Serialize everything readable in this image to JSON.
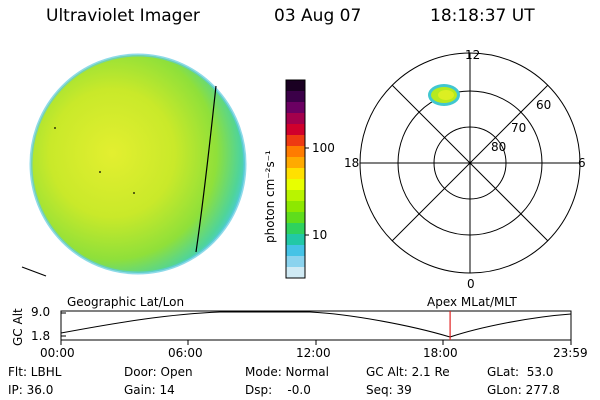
{
  "header": {
    "instrument": "Ultraviolet Imager",
    "date": "03 Aug 07",
    "time": "18:18:37 UT"
  },
  "colorbar": {
    "unit_label": "photon cm⁻²s⁻¹",
    "ticks": [
      "100",
      "10"
    ],
    "colors": [
      "#1a0022",
      "#3b0048",
      "#6b0062",
      "#a3004c",
      "#d0002c",
      "#ee3a12",
      "#ff7c00",
      "#ffaa00",
      "#ffe000",
      "#e8ff00",
      "#b9f400",
      "#8de800",
      "#5fdd1c",
      "#2fd25e",
      "#22c8a6",
      "#45c3e6",
      "#8bd3ee",
      "#d0eaf4"
    ]
  },
  "polar": {
    "mlt_labels": {
      "top": "12",
      "left": "18",
      "right": "6",
      "bottom": "0"
    },
    "lat_labels": [
      "60",
      "70",
      "80"
    ]
  },
  "timeline": {
    "y_axis_label": "GC Alt",
    "y_ticks": [
      "9.0",
      "1.8"
    ],
    "left_label": "Geographic Lat/Lon",
    "right_label": "Apex MLat/MLT",
    "x_ticks": [
      "00:00",
      "06:00",
      "12:00",
      "18:00",
      "23:59"
    ],
    "current_time_hours": 18.31,
    "marker_color": "#e02020"
  },
  "status": {
    "flt": "Flt: LBHL",
    "ip": "IP: 36.0",
    "door": "Door: Open",
    "gain": "Gain: 14",
    "mode": "Mode: Normal",
    "dsp": "Dsp:    -0.0",
    "gc_alt": "GC Alt: 2.1 Re",
    "seq": "Seq: 39",
    "glat": "GLat:  53.0",
    "glon": "GLon: 277.8"
  }
}
